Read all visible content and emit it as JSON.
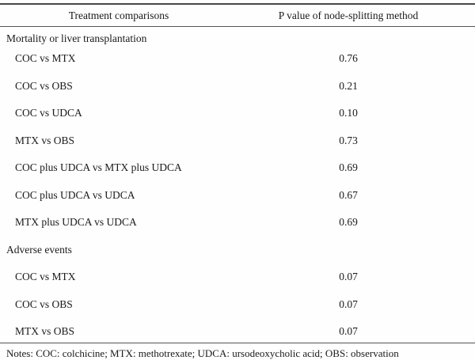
{
  "table": {
    "columns": [
      "Treatment comparisons",
      "P value of node-splitting method"
    ],
    "sections": [
      {
        "title": "Mortality or liver transplantation",
        "rows": [
          {
            "comparison": "COC vs MTX",
            "p_value": "0.76"
          },
          {
            "comparison": "COC vs OBS",
            "p_value": "0.21"
          },
          {
            "comparison": "COC vs UDCA",
            "p_value": "0.10"
          },
          {
            "comparison": "MTX vs OBS",
            "p_value": "0.73"
          },
          {
            "comparison": "COC plus UDCA vs MTX plus UDCA",
            "p_value": "0.69"
          },
          {
            "comparison": "COC plus UDCA vs UDCA",
            "p_value": "0.67"
          },
          {
            "comparison": "MTX plus UDCA vs UDCA",
            "p_value": "0.69"
          }
        ]
      },
      {
        "title": "Adverse events",
        "rows": [
          {
            "comparison": "COC vs MTX",
            "p_value": "0.07"
          },
          {
            "comparison": "COC vs OBS",
            "p_value": "0.07"
          },
          {
            "comparison": "MTX vs OBS",
            "p_value": "0.07"
          }
        ]
      }
    ],
    "notes": "Notes: COC: colchicine; MTX: methotrexate; UDCA: ursodeoxycholic acid; OBS: observation",
    "rule_color_dark": "#474747",
    "rule_color_light": "#555555",
    "text_color": "#1a1a1a"
  }
}
